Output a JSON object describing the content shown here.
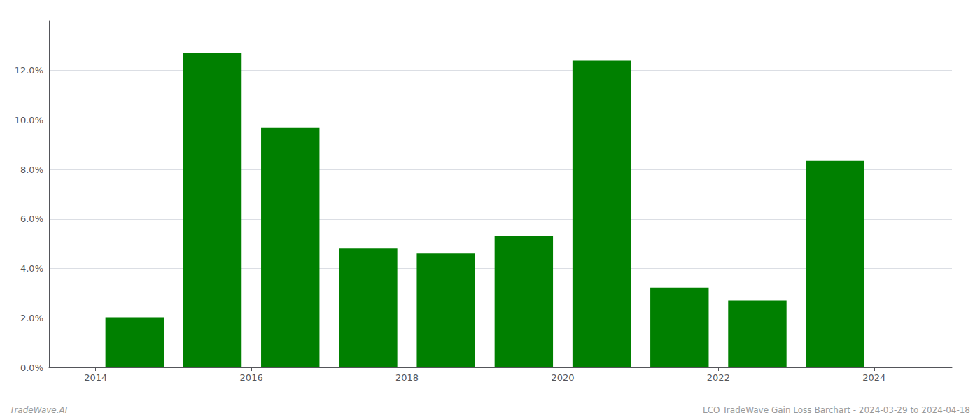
{
  "chart_data": {
    "type": "bar",
    "x": [
      2014.5,
      2015.5,
      2016.5,
      2017.5,
      2018.5,
      2019.5,
      2020.5,
      2021.5,
      2022.5,
      2023.5
    ],
    "values": [
      0.0202,
      0.127,
      0.0968,
      0.048,
      0.046,
      0.0532,
      0.124,
      0.0323,
      0.027,
      0.0835
    ],
    "color": "#008000",
    "xlim": [
      2013.4,
      2025.0
    ],
    "xticks": [
      2014,
      2016,
      2018,
      2020,
      2022,
      2024
    ],
    "ylim": [
      0.0,
      0.14
    ],
    "yticks": [
      {
        "value": 0.0,
        "label": "0.0%"
      },
      {
        "value": 0.02,
        "label": "2.0%"
      },
      {
        "value": 0.04,
        "label": "4.0%"
      },
      {
        "value": 0.06,
        "label": "6.0%"
      },
      {
        "value": 0.08,
        "label": "8.0%"
      },
      {
        "value": 0.1,
        "label": "10.0%"
      },
      {
        "value": 0.12,
        "label": "12.0%"
      }
    ],
    "grid": true,
    "annotations": [
      "TradeWave.AI",
      "LCO TradeWave Gain Loss Barchart - 2024-03-29 to 2024-04-18"
    ]
  }
}
